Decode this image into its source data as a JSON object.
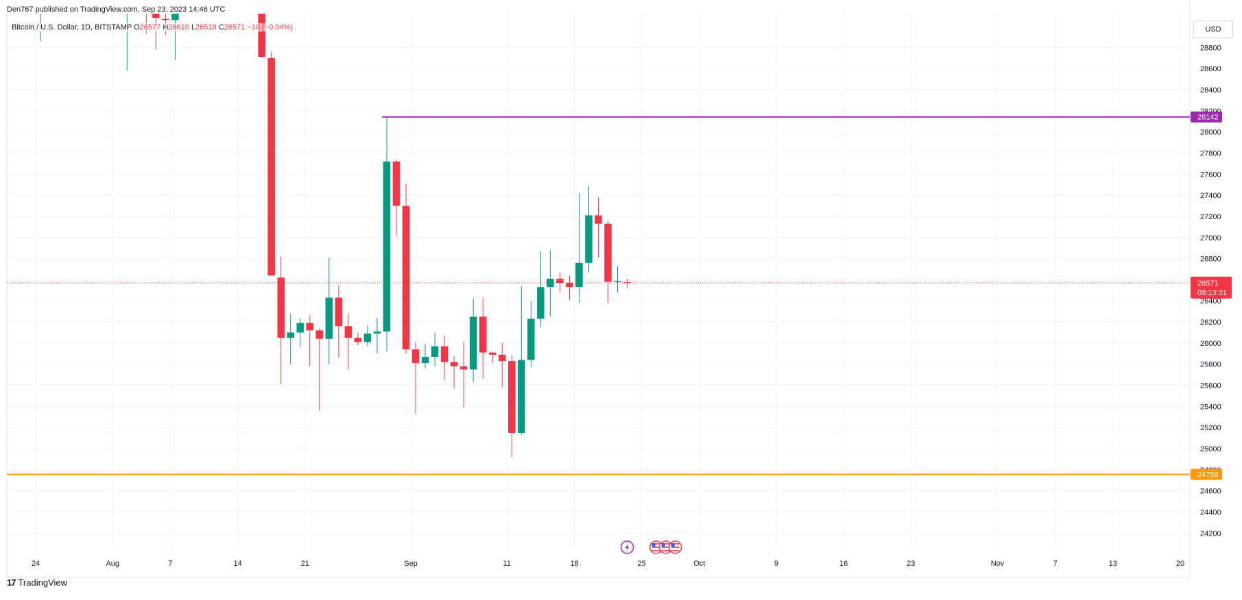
{
  "publish_line": "Den767 published on TradingView.com, Sep 23, 2023 14:46 UTC",
  "legend": {
    "symbol": "Bitcoin / U.S. Dollar, 1D, BITSTAMP",
    "o_label": "O",
    "o_value": "26577",
    "h_label": "H",
    "h_value": "26610",
    "l_label": "L",
    "l_value": "26519",
    "c_label": "C",
    "c_value": "26571",
    "change": "−10 (−0.04%)"
  },
  "currency_button": "USD",
  "footer_brand": "TradingView",
  "colors": {
    "up": "#089981",
    "down": "#f23645",
    "resistance": "#9c27b0",
    "support": "#ff9800",
    "price_line": "#f23645",
    "grid": "#f0f3fa"
  },
  "chart_data": {
    "type": "candlestick",
    "ylim": [
      24040,
      29120
    ],
    "y_ticks": [
      24200,
      24400,
      24600,
      24800,
      25000,
      25200,
      25400,
      25600,
      25800,
      26000,
      26200,
      26400,
      26600,
      26800,
      27000,
      27200,
      27400,
      27600,
      27800,
      28000,
      28200,
      28400,
      28600,
      28800
    ],
    "x_ticks": [
      {
        "label": "24",
        "date": "2023-07-24"
      },
      {
        "label": "Aug",
        "date": "2023-08-01"
      },
      {
        "label": "7",
        "date": "2023-08-07"
      },
      {
        "label": "14",
        "date": "2023-08-14"
      },
      {
        "label": "21",
        "date": "2023-08-21"
      },
      {
        "label": "Sep",
        "date": "2023-09-01"
      },
      {
        "label": "11",
        "date": "2023-09-11"
      },
      {
        "label": "18",
        "date": "2023-09-18"
      },
      {
        "label": "25",
        "date": "2023-09-25"
      },
      {
        "label": "Oct",
        "date": "2023-10-01"
      },
      {
        "label": "9",
        "date": "2023-10-09"
      },
      {
        "label": "16",
        "date": "2023-10-16"
      },
      {
        "label": "23",
        "date": "2023-10-23"
      },
      {
        "label": "Nov",
        "date": "2023-11-01"
      },
      {
        "label": "7",
        "date": "2023-11-07"
      },
      {
        "label": "13",
        "date": "2023-11-13"
      },
      {
        "label": "20",
        "date": "2023-11-20"
      }
    ],
    "x_range": [
      "2023-07-21",
      "2023-11-21"
    ],
    "candles": [
      {
        "date": "2023-07-24",
        "o": 29200,
        "h": 29240,
        "l": 28860,
        "c": 29200
      },
      {
        "date": "2023-08-02",
        "o": 29170,
        "h": 29230,
        "l": 28580,
        "c": 29200
      },
      {
        "date": "2023-08-04",
        "o": 29200,
        "h": 29230,
        "l": 28930,
        "c": 29180
      },
      {
        "date": "2023-08-05",
        "o": 29120,
        "h": 29180,
        "l": 28780,
        "c": 29080
      },
      {
        "date": "2023-08-06",
        "o": 29070,
        "h": 29180,
        "l": 28920,
        "c": 29060
      },
      {
        "date": "2023-08-07",
        "o": 29060,
        "h": 29240,
        "l": 28680,
        "c": 29180
      },
      {
        "date": "2023-08-16",
        "o": 29160,
        "h": 29240,
        "l": 28710,
        "c": 28710
      },
      {
        "date": "2023-08-17",
        "o": 28700,
        "h": 28760,
        "l": 26640,
        "c": 26640
      },
      {
        "date": "2023-08-18",
        "o": 26620,
        "h": 26820,
        "l": 25610,
        "c": 26050
      },
      {
        "date": "2023-08-19",
        "o": 26050,
        "h": 26280,
        "l": 25800,
        "c": 26100
      },
      {
        "date": "2023-08-20",
        "o": 26100,
        "h": 26240,
        "l": 25960,
        "c": 26190
      },
      {
        "date": "2023-08-21",
        "o": 26190,
        "h": 26260,
        "l": 25780,
        "c": 26120
      },
      {
        "date": "2023-08-22",
        "o": 26120,
        "h": 26140,
        "l": 25360,
        "c": 26040
      },
      {
        "date": "2023-08-23",
        "o": 26040,
        "h": 26810,
        "l": 25800,
        "c": 26430
      },
      {
        "date": "2023-08-24",
        "o": 26430,
        "h": 26550,
        "l": 25860,
        "c": 26160
      },
      {
        "date": "2023-08-25",
        "o": 26160,
        "h": 26280,
        "l": 25750,
        "c": 26050
      },
      {
        "date": "2023-08-26",
        "o": 26050,
        "h": 26100,
        "l": 25980,
        "c": 26010
      },
      {
        "date": "2023-08-27",
        "o": 26010,
        "h": 26170,
        "l": 25970,
        "c": 26090
      },
      {
        "date": "2023-08-28",
        "o": 26090,
        "h": 26240,
        "l": 25900,
        "c": 26110
      },
      {
        "date": "2023-08-29",
        "o": 26110,
        "h": 28142,
        "l": 25920,
        "c": 27720
      },
      {
        "date": "2023-08-30",
        "o": 27720,
        "h": 27740,
        "l": 27010,
        "c": 27300
      },
      {
        "date": "2023-08-31",
        "o": 27300,
        "h": 27510,
        "l": 25900,
        "c": 25940
      },
      {
        "date": "2023-09-01",
        "o": 25940,
        "h": 26010,
        "l": 25330,
        "c": 25810
      },
      {
        "date": "2023-09-02",
        "o": 25810,
        "h": 25990,
        "l": 25760,
        "c": 25870
      },
      {
        "date": "2023-09-03",
        "o": 25870,
        "h": 26100,
        "l": 25780,
        "c": 25970
      },
      {
        "date": "2023-09-04",
        "o": 25970,
        "h": 26070,
        "l": 25650,
        "c": 25820
      },
      {
        "date": "2023-09-05",
        "o": 25820,
        "h": 25880,
        "l": 25570,
        "c": 25780
      },
      {
        "date": "2023-09-06",
        "o": 25780,
        "h": 26010,
        "l": 25390,
        "c": 25750
      },
      {
        "date": "2023-09-07",
        "o": 25750,
        "h": 26420,
        "l": 25630,
        "c": 26250
      },
      {
        "date": "2023-09-08",
        "o": 26250,
        "h": 26430,
        "l": 25660,
        "c": 25910
      },
      {
        "date": "2023-09-09",
        "o": 25910,
        "h": 25920,
        "l": 25810,
        "c": 25890
      },
      {
        "date": "2023-09-10",
        "o": 25890,
        "h": 26000,
        "l": 25580,
        "c": 25830
      },
      {
        "date": "2023-09-11",
        "o": 25830,
        "h": 25880,
        "l": 24920,
        "c": 25150
      },
      {
        "date": "2023-09-12",
        "o": 25150,
        "h": 26540,
        "l": 25130,
        "c": 25840
      },
      {
        "date": "2023-09-13",
        "o": 25840,
        "h": 26400,
        "l": 25770,
        "c": 26230
      },
      {
        "date": "2023-09-14",
        "o": 26230,
        "h": 26870,
        "l": 26150,
        "c": 26530
      },
      {
        "date": "2023-09-15",
        "o": 26530,
        "h": 26880,
        "l": 26250,
        "c": 26610
      },
      {
        "date": "2023-09-16",
        "o": 26610,
        "h": 26670,
        "l": 26480,
        "c": 26570
      },
      {
        "date": "2023-09-17",
        "o": 26570,
        "h": 26640,
        "l": 26410,
        "c": 26530
      },
      {
        "date": "2023-09-18",
        "o": 26530,
        "h": 27420,
        "l": 26380,
        "c": 26760
      },
      {
        "date": "2023-09-19",
        "o": 26760,
        "h": 27490,
        "l": 26670,
        "c": 27210
      },
      {
        "date": "2023-09-20",
        "o": 27210,
        "h": 27380,
        "l": 26810,
        "c": 27130
      },
      {
        "date": "2023-09-21",
        "o": 27130,
        "h": 27160,
        "l": 26380,
        "c": 26580
      },
      {
        "date": "2023-09-22",
        "o": 26580,
        "h": 26730,
        "l": 26480,
        "c": 26590
      },
      {
        "date": "2023-09-23",
        "o": 26577,
        "h": 26610,
        "l": 26519,
        "c": 26571
      }
    ],
    "levels": [
      {
        "name": "resistance",
        "value": 28142,
        "label": "28142",
        "start": "2023-08-29"
      },
      {
        "name": "support",
        "value": 24756,
        "label": "24756",
        "start": "2023-07-21"
      }
    ],
    "last_price": {
      "value": 26571,
      "label": "26571",
      "countdown": "09:13:31"
    },
    "events": [
      {
        "date": "2023-09-23",
        "icon": "lightning-icon"
      },
      {
        "date": "2023-09-26",
        "icon": "us-flag-icon"
      },
      {
        "date": "2023-09-27",
        "icon": "us-flag-icon"
      },
      {
        "date": "2023-09-28",
        "icon": "us-flag-icon"
      }
    ]
  }
}
